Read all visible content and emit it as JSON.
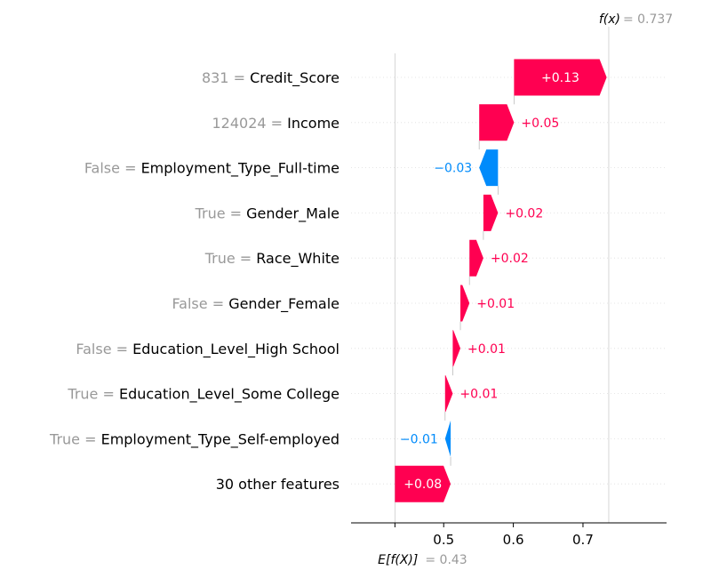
{
  "chart_data": {
    "type": "waterfall",
    "base_value": {
      "label": "E[f(X)]",
      "value": 0.43,
      "value_text": "= 0.43"
    },
    "output_value": {
      "label": "f(x)",
      "value": 0.737,
      "value_text": "= 0.737"
    },
    "features": [
      {
        "value": "831",
        "name": "Credit_Score",
        "contribution": 0.133,
        "contribution_text": "+0.13"
      },
      {
        "value": "124024",
        "name": "Income",
        "contribution": 0.05,
        "contribution_text": "+0.05"
      },
      {
        "value": "False",
        "name": "Employment_Type_Full-time",
        "contribution": -0.027,
        "contribution_text": "−0.03"
      },
      {
        "value": "True",
        "name": "Gender_Male",
        "contribution": 0.021,
        "contribution_text": "+0.02"
      },
      {
        "value": "True",
        "name": "Race_White",
        "contribution": 0.02,
        "contribution_text": "+0.02"
      },
      {
        "value": "False",
        "name": "Gender_Female",
        "contribution": 0.013,
        "contribution_text": "+0.01"
      },
      {
        "value": "False",
        "name": "Education_Level_High School",
        "contribution": 0.011,
        "contribution_text": "+0.01"
      },
      {
        "value": "True",
        "name": "Education_Level_Some College",
        "contribution": 0.011,
        "contribution_text": "+0.01"
      },
      {
        "value": "True",
        "name": "Employment_Type_Self-employed",
        "contribution": -0.008,
        "contribution_text": "−0.01"
      },
      {
        "value": "",
        "name": "30 other features",
        "contribution": 0.08,
        "contribution_text": "+0.08"
      }
    ],
    "x_ticks": [
      0.5,
      0.6,
      0.7
    ],
    "x_tick_labels": [
      "0.5",
      "0.6",
      "0.7"
    ],
    "xlim": [
      0.367,
      0.82
    ],
    "colors": {
      "positive": "#ff0051",
      "negative": "#008bfb",
      "muted": "#999999",
      "text": "#000000"
    }
  }
}
